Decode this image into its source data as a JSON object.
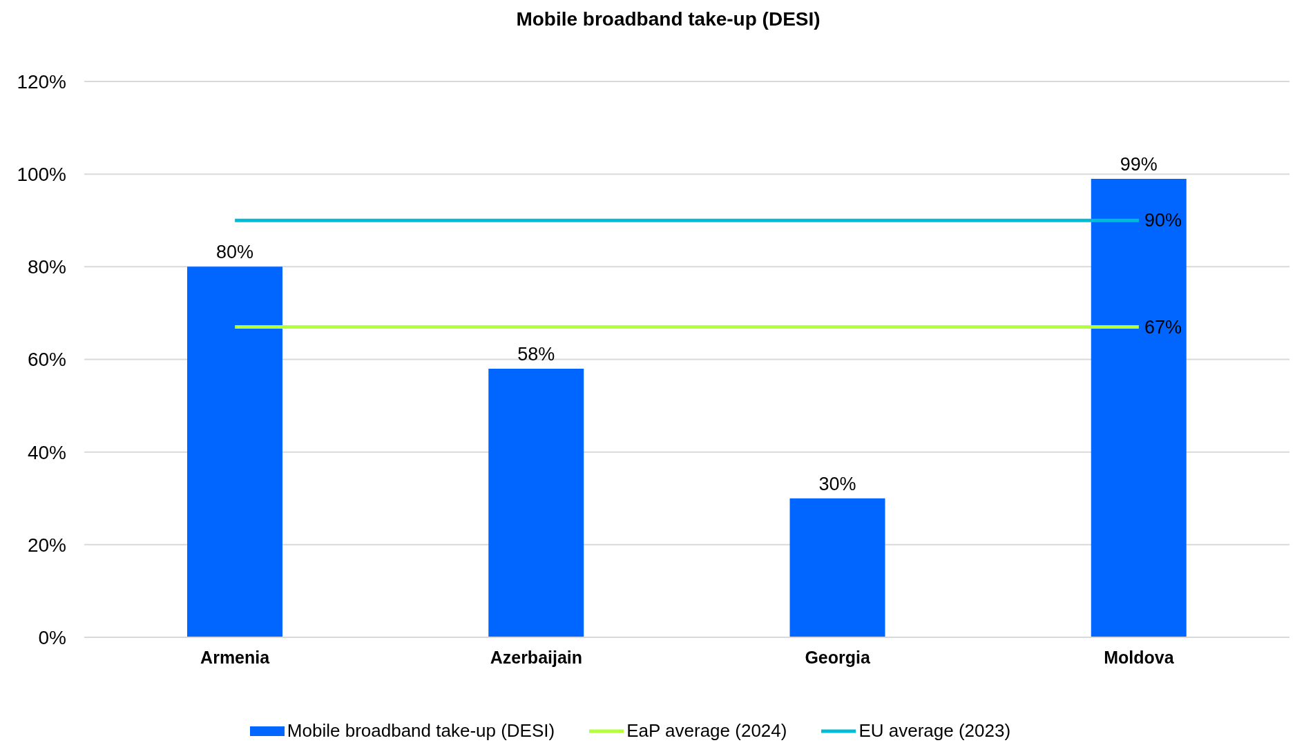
{
  "chart_data": {
    "type": "bar",
    "title": "Mobile broadband take-up (DESI)",
    "categories": [
      "Armenia",
      "Azerbaijain",
      "Georgia",
      "Moldova"
    ],
    "series": [
      {
        "name": "Mobile broadband take-up (DESI)",
        "color": "#0066ff",
        "values": [
          80,
          58,
          30,
          99
        ],
        "value_labels": [
          "80%",
          "58%",
          "30%",
          "99%"
        ]
      },
      {
        "name": "EaP average (2024)",
        "type": "line",
        "color": "#b2ff3a",
        "values": [
          67,
          67,
          67,
          67
        ],
        "value_labels": [
          null,
          null,
          null,
          "67%"
        ]
      },
      {
        "name": "EU average (2023)",
        "type": "line",
        "color": "#00bcd4",
        "values": [
          90,
          90,
          90,
          90
        ],
        "value_labels": [
          null,
          null,
          null,
          "90%"
        ]
      }
    ],
    "ylim": [
      0,
      120
    ],
    "yticks": [
      {
        "value": 0,
        "label": "0%"
      },
      {
        "value": 20,
        "label": "20%"
      },
      {
        "value": 40,
        "label": "40%"
      },
      {
        "value": 60,
        "label": "60%"
      },
      {
        "value": 80,
        "label": "80%"
      },
      {
        "value": 100,
        "label": "100%"
      },
      {
        "value": 120,
        "label": "120%"
      }
    ],
    "grid": "y",
    "legend": "bottom"
  }
}
